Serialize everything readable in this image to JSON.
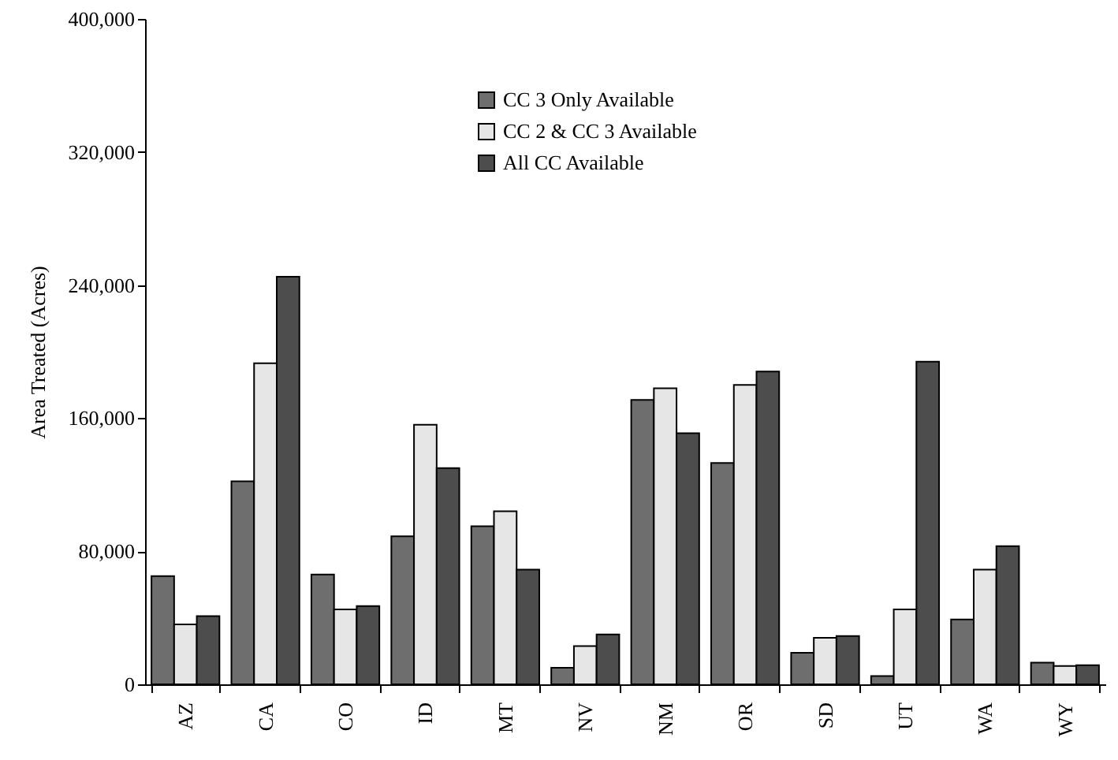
{
  "chart_data": {
    "type": "bar",
    "ylabel": "Area Treated (Acres)",
    "categories": [
      "AZ",
      "CA",
      "CO",
      "ID",
      "MT",
      "NV",
      "NM",
      "OR",
      "SD",
      "UT",
      "WA",
      "WY"
    ],
    "series": [
      {
        "name": "CC 3 Only Available",
        "color": "#6e6e6e",
        "values": [
          65000,
          122000,
          66000,
          89000,
          95000,
          10000,
          171000,
          133000,
          19000,
          5000,
          39000,
          13000
        ]
      },
      {
        "name": "CC 2 & CC 3 Available",
        "color": "#e6e6e6",
        "values": [
          36000,
          193000,
          45000,
          156000,
          104000,
          23000,
          178000,
          180000,
          28000,
          45000,
          69000,
          11000
        ]
      },
      {
        "name": "All CC Available",
        "color": "#4d4d4d",
        "values": [
          41000,
          245000,
          47000,
          130000,
          69000,
          30000,
          151000,
          188000,
          29000,
          194000,
          83000,
          11500
        ]
      }
    ],
    "ylim": [
      0,
      400000
    ],
    "yticks": [
      0,
      {
        "value": 80000,
        "label": "80,000"
      },
      {
        "value": 160000,
        "label": "160,000"
      },
      {
        "value": 240000,
        "label": "240,000"
      },
      {
        "value": 320000,
        "label": "320,000"
      },
      {
        "value": 400000,
        "label": "400,000"
      }
    ],
    "grid": false,
    "legend": "top"
  }
}
